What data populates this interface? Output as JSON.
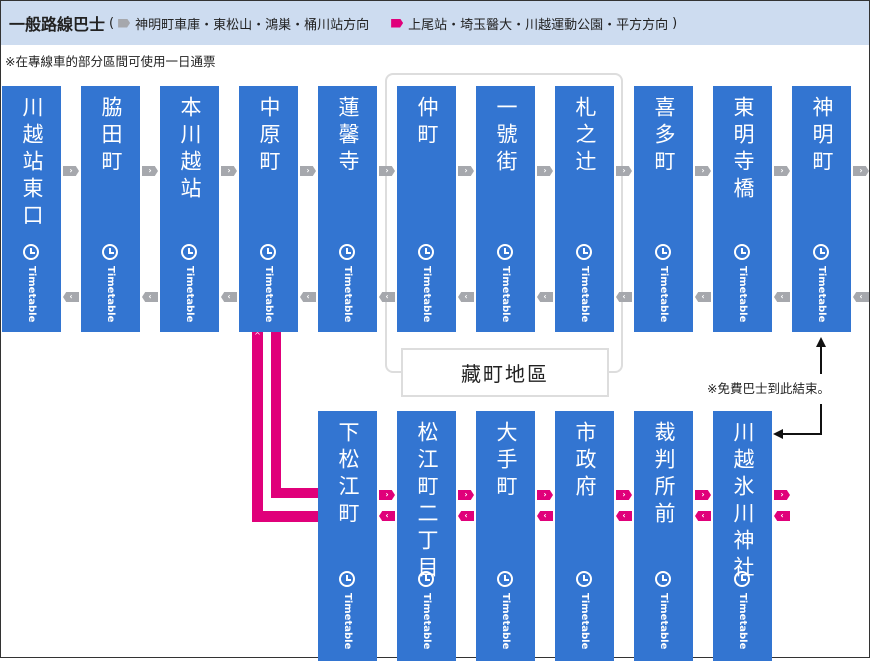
{
  "header": {
    "title": "一般路線巴士",
    "open_paren": "(",
    "legend_outbound": "神明町車庫・東松山・鴻巣・桶川站方向",
    "legend_inbound": "上尾站・埼玉醫大・川越運動公園・平方方向",
    "close_paren": ")"
  },
  "note": "※在專線車的部分區間可使用一日通票",
  "colors": {
    "station": "#3375d1",
    "header_bg": "#cddcf0",
    "outbound": "#a6a8ad",
    "inbound": "#e0007a"
  },
  "timetable_label": "Timetable",
  "timetable_icon": "clock-icon",
  "top_stations": [
    "川越站東口",
    "脇田町",
    "本川越站",
    "中原町",
    "蓮馨寺",
    "仲町",
    "一號街",
    "札之辻",
    "喜多町",
    "東明寺橋",
    "神明町"
  ],
  "bottom_stations": [
    "下松江町",
    "松江町二丁目",
    "大手町",
    "市政府",
    "裁判所前",
    "川越氷川神社"
  ],
  "district_label": "藏町地區",
  "free_bus_note": "※免費巴士到此結束。"
}
